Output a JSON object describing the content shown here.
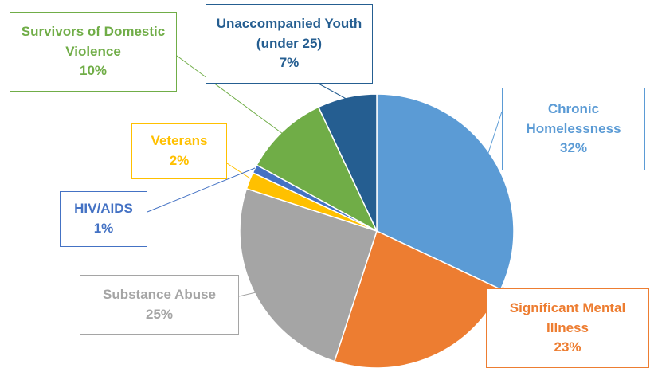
{
  "chart_data": {
    "type": "pie",
    "categories": [
      "Chronic Homelessness",
      "Significant Mental Illness",
      "Substance Abuse",
      "Veterans",
      "HIV/AIDS",
      "Survivors of Domestic Violence",
      "Unaccompanied Youth (under 25)"
    ],
    "values": [
      32,
      23,
      25,
      2,
      1,
      10,
      7
    ],
    "value_labels": [
      "32%",
      "23%",
      "25%",
      "2%",
      "1%",
      "10%",
      "7%"
    ],
    "colors": [
      "#5b9bd5",
      "#ed7d31",
      "#a5a5a5",
      "#ffc000",
      "#4472c4",
      "#70ad47",
      "#255e91"
    ]
  }
}
